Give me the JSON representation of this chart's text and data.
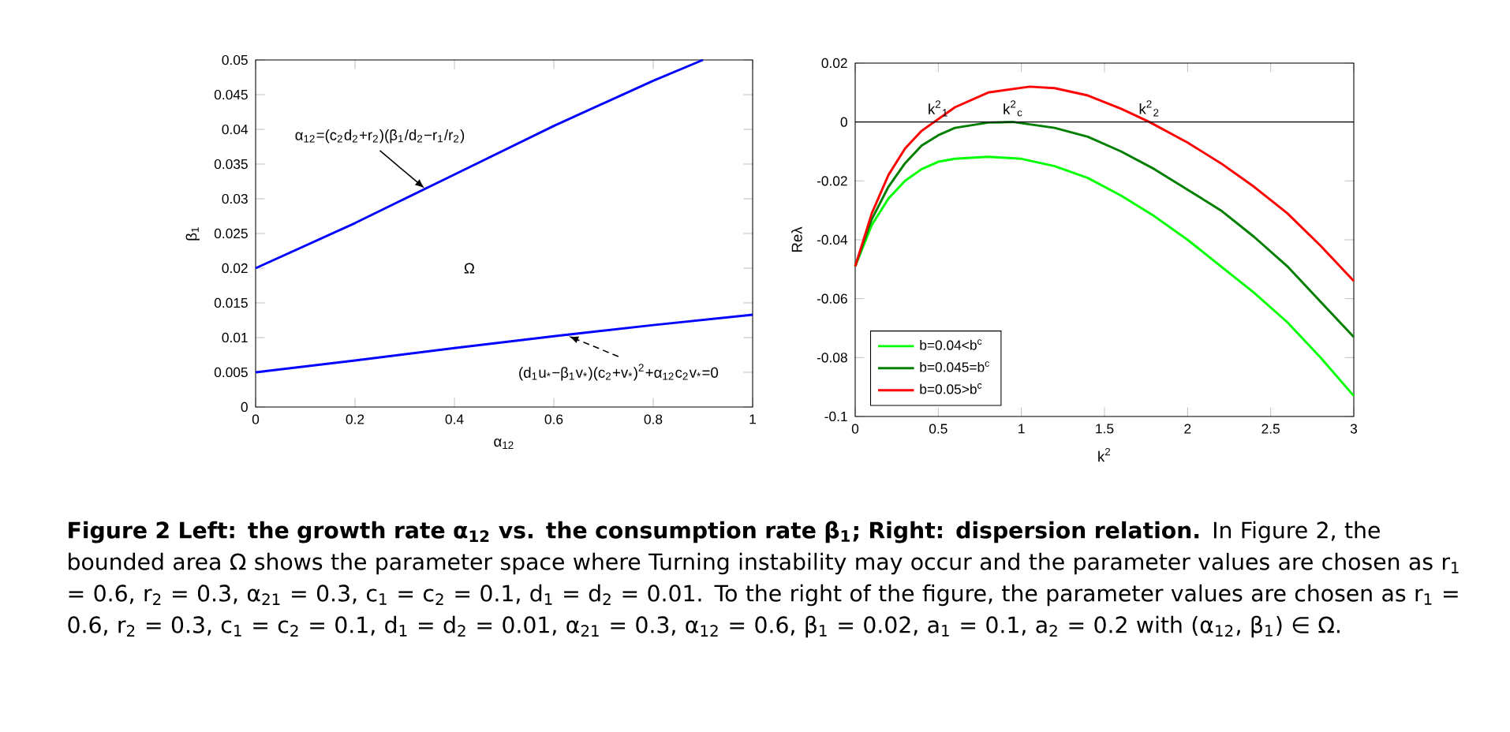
{
  "chart_data": [
    {
      "type": "line",
      "xlabel": "α$_{12}$",
      "ylabel": "β$_{1}$",
      "xlim": [
        0,
        1
      ],
      "ylim": [
        0,
        0.05
      ],
      "xticks": [
        0,
        0.2,
        0.4,
        0.6,
        0.8,
        1
      ],
      "yticks": [
        0,
        0.005,
        0.01,
        0.015,
        0.02,
        0.025,
        0.03,
        0.035,
        0.04,
        0.045,
        0.05
      ],
      "series": [
        {
          "color": "#0000ff",
          "x": [
            0,
            0.2,
            0.4,
            0.6,
            0.8,
            0.9
          ],
          "values": [
            0.02,
            0.0265,
            0.0335,
            0.0405,
            0.047,
            0.05
          ]
        },
        {
          "color": "#0000ff",
          "x": [
            0,
            0.2,
            0.4,
            0.6,
            0.8,
            1
          ],
          "values": [
            0.005,
            0.0067,
            0.0085,
            0.0102,
            0.0118,
            0.0133
          ]
        }
      ],
      "annotations": [
        "α$_{12}$=(c$_{2}$d$_{2}$+r$_{2}$)(β$_{1}$/d$_{2}$−r$_{1}$/r$_{2}$)",
        "(d$_{1}$u$_{*}$−β$_{1}$v$_{*}$)(c$_{2}$+v$_{*}$)$^{2}$+α$_{12}$c$_{2}$v$_{*}$=0",
        "Ω"
      ]
    },
    {
      "type": "line",
      "xlabel": "k$^{2}$",
      "ylabel": "Reλ",
      "xlim": [
        0,
        3
      ],
      "ylim": [
        -0.1,
        0.02
      ],
      "xticks": [
        0,
        0.5,
        1,
        1.5,
        2,
        2.5,
        3
      ],
      "yticks": [
        -0.1,
        -0.08,
        -0.06,
        -0.04,
        -0.02,
        0,
        0.02
      ],
      "legend": "bottom left",
      "series": [
        {
          "name": "b=0.04<b$^{c}$",
          "color": "#00ff00",
          "x": [
            0,
            0.1,
            0.2,
            0.3,
            0.4,
            0.5,
            0.6,
            0.8,
            1.0,
            1.2,
            1.4,
            1.6,
            1.8,
            2.0,
            2.2,
            2.4,
            2.6,
            2.8,
            3.0
          ],
          "values": [
            -0.049,
            -0.035,
            -0.026,
            -0.02,
            -0.016,
            -0.0135,
            -0.0125,
            -0.0118,
            -0.0125,
            -0.015,
            -0.019,
            -0.025,
            -0.032,
            -0.04,
            -0.049,
            -0.058,
            -0.068,
            -0.08,
            -0.093
          ]
        },
        {
          "name": "b=0.045=b$^{c}$",
          "color": "#007f00",
          "x": [
            0,
            0.1,
            0.2,
            0.3,
            0.4,
            0.5,
            0.6,
            0.8,
            0.95,
            1.2,
            1.4,
            1.6,
            1.8,
            2.0,
            2.2,
            2.4,
            2.6,
            2.8,
            3.0
          ],
          "values": [
            -0.049,
            -0.033,
            -0.022,
            -0.014,
            -0.008,
            -0.0045,
            -0.002,
            -0.0002,
            0,
            -0.002,
            -0.005,
            -0.01,
            -0.016,
            -0.023,
            -0.03,
            -0.039,
            -0.049,
            -0.061,
            -0.073
          ]
        },
        {
          "name": "b=0.05>b$^{c}$",
          "color": "#ff0000",
          "x": [
            0,
            0.1,
            0.2,
            0.3,
            0.4,
            0.5,
            0.6,
            0.8,
            1.05,
            1.2,
            1.4,
            1.6,
            1.77,
            2.0,
            2.2,
            2.4,
            2.6,
            2.8,
            3.0
          ],
          "values": [
            -0.049,
            -0.031,
            -0.018,
            -0.009,
            -0.003,
            0.001,
            0.005,
            0.01,
            0.012,
            0.0115,
            0.009,
            0.0045,
            0,
            -0.007,
            -0.014,
            -0.022,
            -0.031,
            -0.042,
            -0.054
          ]
        }
      ],
      "ref_lines": [
        {
          "axis": "y",
          "value": 0,
          "color": "#000000"
        }
      ],
      "annotations": [
        {
          "text": "k$^{2}$$_{1}$",
          "x": 0.5,
          "y": 0
        },
        {
          "text": "k$^{2}$$_{c}$",
          "x": 0.95,
          "y": 0
        },
        {
          "text": "k$^{2}$$_{2}$",
          "x": 1.77,
          "y": 0
        },
        "Figure 2  Left: the growth rate α$_{12}$ vs. the consumption rate β$_{1}$; Right: dispersion relation.",
        "In Figure 2, the bounded area Ω shows the parameter space where Turning instability may occur and the parameter values are chosen as r$_{1}$ = 0.6, r$_{2}$ = 0.3, α$_{21}$ = 0.3, c$_{1}$ = c$_{2}$ = 0.1, d$_{1}$ = d$_{2}$ = 0.01. To the right of the figure, the parameter values are chosen as r$_{1}$ = 0.6, r$_{2}$ = 0.3, c$_{1}$ = c$_{2}$ = 0.1, d$_{1}$ = d$_{2}$ = 0.01, α$_{21}$ = 0.3, α$_{12}$ = 0.6, β$_{1}$ = 0.02, a$_{1}$ = 0.1, a$_{2}$ = 0.2 with (α$_{12}$, β$_{1}$) ∈ Ω."
      ]
    }
  ]
}
